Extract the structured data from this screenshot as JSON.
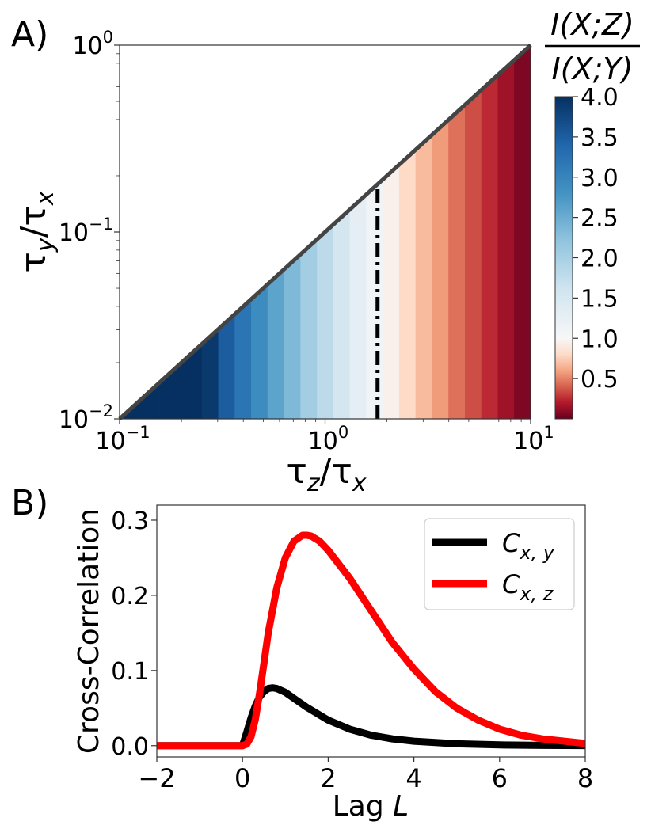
{
  "chart_data": [
    {
      "panel_label": "A)",
      "type": "heatmap",
      "xlabel": "τz/τx",
      "ylabel": "τy/τx",
      "x_scale": "log",
      "y_scale": "log",
      "xlim": [
        0.1,
        10
      ],
      "ylim": [
        0.01,
        1
      ],
      "x_ticks": [
        {
          "value": 0.1,
          "base": "10",
          "exp": "−1"
        },
        {
          "value": 1,
          "base": "10",
          "exp": "0"
        },
        {
          "value": 10,
          "base": "10",
          "exp": "1"
        }
      ],
      "y_ticks": [
        {
          "value": 0.01,
          "base": "10",
          "exp": "−2"
        },
        {
          "value": 0.1,
          "base": "10",
          "exp": "−1"
        },
        {
          "value": 1,
          "base": "10",
          "exp": "0"
        }
      ],
      "region": "τy/τx < 0.1·τz/τx (below diagonal)",
      "ratio_columns": {
        "x": [
          0.11,
          0.13,
          0.16,
          0.19,
          0.23,
          0.28,
          0.33,
          0.4,
          0.48,
          0.58,
          0.69,
          0.83,
          1.0,
          1.2,
          1.45,
          1.74,
          2.09,
          2.51,
          3.02,
          3.63,
          4.37,
          5.25,
          6.31,
          7.59,
          9.12
        ],
        "ratio": [
          4.0,
          4.0,
          4.0,
          4.0,
          4.0,
          3.9,
          3.5,
          3.2,
          2.9,
          2.6,
          2.35,
          2.05,
          1.8,
          1.55,
          1.3,
          1.1,
          0.95,
          0.8,
          0.68,
          0.57,
          0.45,
          0.35,
          0.25,
          0.15,
          0.06
        ]
      },
      "contour_ratio1_x": 1.8,
      "colorbar": {
        "title_num": "I(X;Z)",
        "title_den": "I(X;Y)",
        "min": 0.0,
        "max": 4.0,
        "ticks": [
          "4.0",
          "3.5",
          "3.0",
          "2.5",
          "2.0",
          "1.5",
          "1.0",
          "0.5"
        ],
        "tick_values": [
          4.0,
          3.5,
          3.0,
          2.5,
          2.0,
          1.5,
          1.0,
          0.5
        ],
        "colormap": [
          "#67001f",
          "#b2182b",
          "#d6604d",
          "#f4a582",
          "#fddbc7",
          "#f7f7f7",
          "#d1e5f0",
          "#92c5de",
          "#4393c3",
          "#2166ac",
          "#053061"
        ],
        "center_value": 1.0
      }
    },
    {
      "panel_label": "B)",
      "type": "line",
      "xlabel": "Lag",
      "xlabel_var": "L",
      "ylabel": "Cross-Correlation",
      "xlim": [
        -2,
        8
      ],
      "ylim": [
        -0.015,
        0.32
      ],
      "x_ticks": [
        "−2",
        "0",
        "2",
        "4",
        "6",
        "8"
      ],
      "x_tick_values": [
        -2,
        0,
        2,
        4,
        6,
        8
      ],
      "y_ticks": [
        "0.0",
        "0.1",
        "0.2",
        "0.3"
      ],
      "y_tick_values": [
        0,
        0.1,
        0.2,
        0.3
      ],
      "legend_position": "top-right",
      "series": [
        {
          "name": "C",
          "subscript": "x, y",
          "color": "#000000",
          "x": [
            -2,
            0,
            0.1,
            0.2,
            0.3,
            0.4,
            0.5,
            0.6,
            0.7,
            0.8,
            1.0,
            1.2,
            1.5,
            2.0,
            2.5,
            3.0,
            3.5,
            4.0,
            5.0,
            6.0,
            7.0,
            8.0
          ],
          "values": [
            0,
            0,
            0.018,
            0.037,
            0.053,
            0.065,
            0.072,
            0.076,
            0.077,
            0.076,
            0.071,
            0.063,
            0.051,
            0.034,
            0.022,
            0.014,
            0.009,
            0.006,
            0.0025,
            0.001,
            0.0004,
            0.0002
          ]
        },
        {
          "name": "C",
          "subscript": "x, z",
          "color": "#ff0000",
          "x": [
            -2,
            0,
            0.1,
            0.2,
            0.3,
            0.4,
            0.5,
            0.6,
            0.8,
            1.0,
            1.2,
            1.4,
            1.5,
            1.6,
            1.8,
            2.0,
            2.5,
            3.0,
            3.5,
            4.0,
            4.5,
            5.0,
            5.5,
            6.0,
            6.5,
            7.0,
            8.0
          ],
          "values": [
            0,
            0,
            0.002,
            0.012,
            0.035,
            0.07,
            0.11,
            0.15,
            0.21,
            0.25,
            0.272,
            0.28,
            0.28,
            0.279,
            0.272,
            0.26,
            0.223,
            0.18,
            0.137,
            0.102,
            0.072,
            0.05,
            0.034,
            0.022,
            0.014,
            0.009,
            0.003
          ]
        }
      ]
    }
  ]
}
